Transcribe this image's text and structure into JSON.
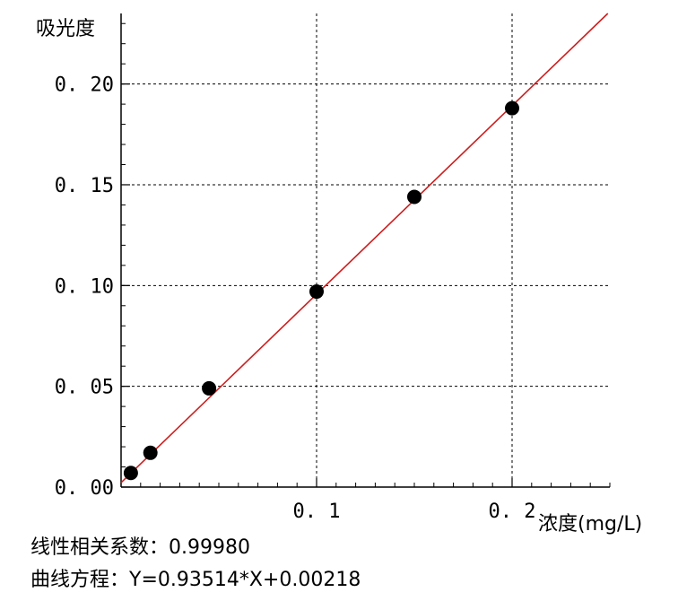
{
  "chart_data": {
    "type": "scatter",
    "ylabel": "吸光度",
    "xlabel": "浓度(mg/L)",
    "x_ticks": [
      "0.1",
      "0.2"
    ],
    "y_ticks": [
      "0.00",
      "0.05",
      "0.10",
      "0.15",
      "0.20"
    ],
    "xlim": [
      0.0,
      0.25
    ],
    "ylim": [
      0.0,
      0.235
    ],
    "grid": true,
    "series": [
      {
        "points": [
          {
            "x": 0.005,
            "y": 0.007
          },
          {
            "x": 0.015,
            "y": 0.017
          },
          {
            "x": 0.045,
            "y": 0.049
          },
          {
            "x": 0.1,
            "y": 0.097
          },
          {
            "x": 0.15,
            "y": 0.144
          },
          {
            "x": 0.2,
            "y": 0.188
          }
        ],
        "marker_color": "#000000"
      }
    ],
    "fit_line": {
      "slope": 0.93514,
      "intercept": 0.00218,
      "color": "#cc1f1f"
    }
  },
  "footer": {
    "correlation": "线性相关系数：0.99980",
    "equation": "曲线方程：Y=0.93514*X+0.00218"
  }
}
